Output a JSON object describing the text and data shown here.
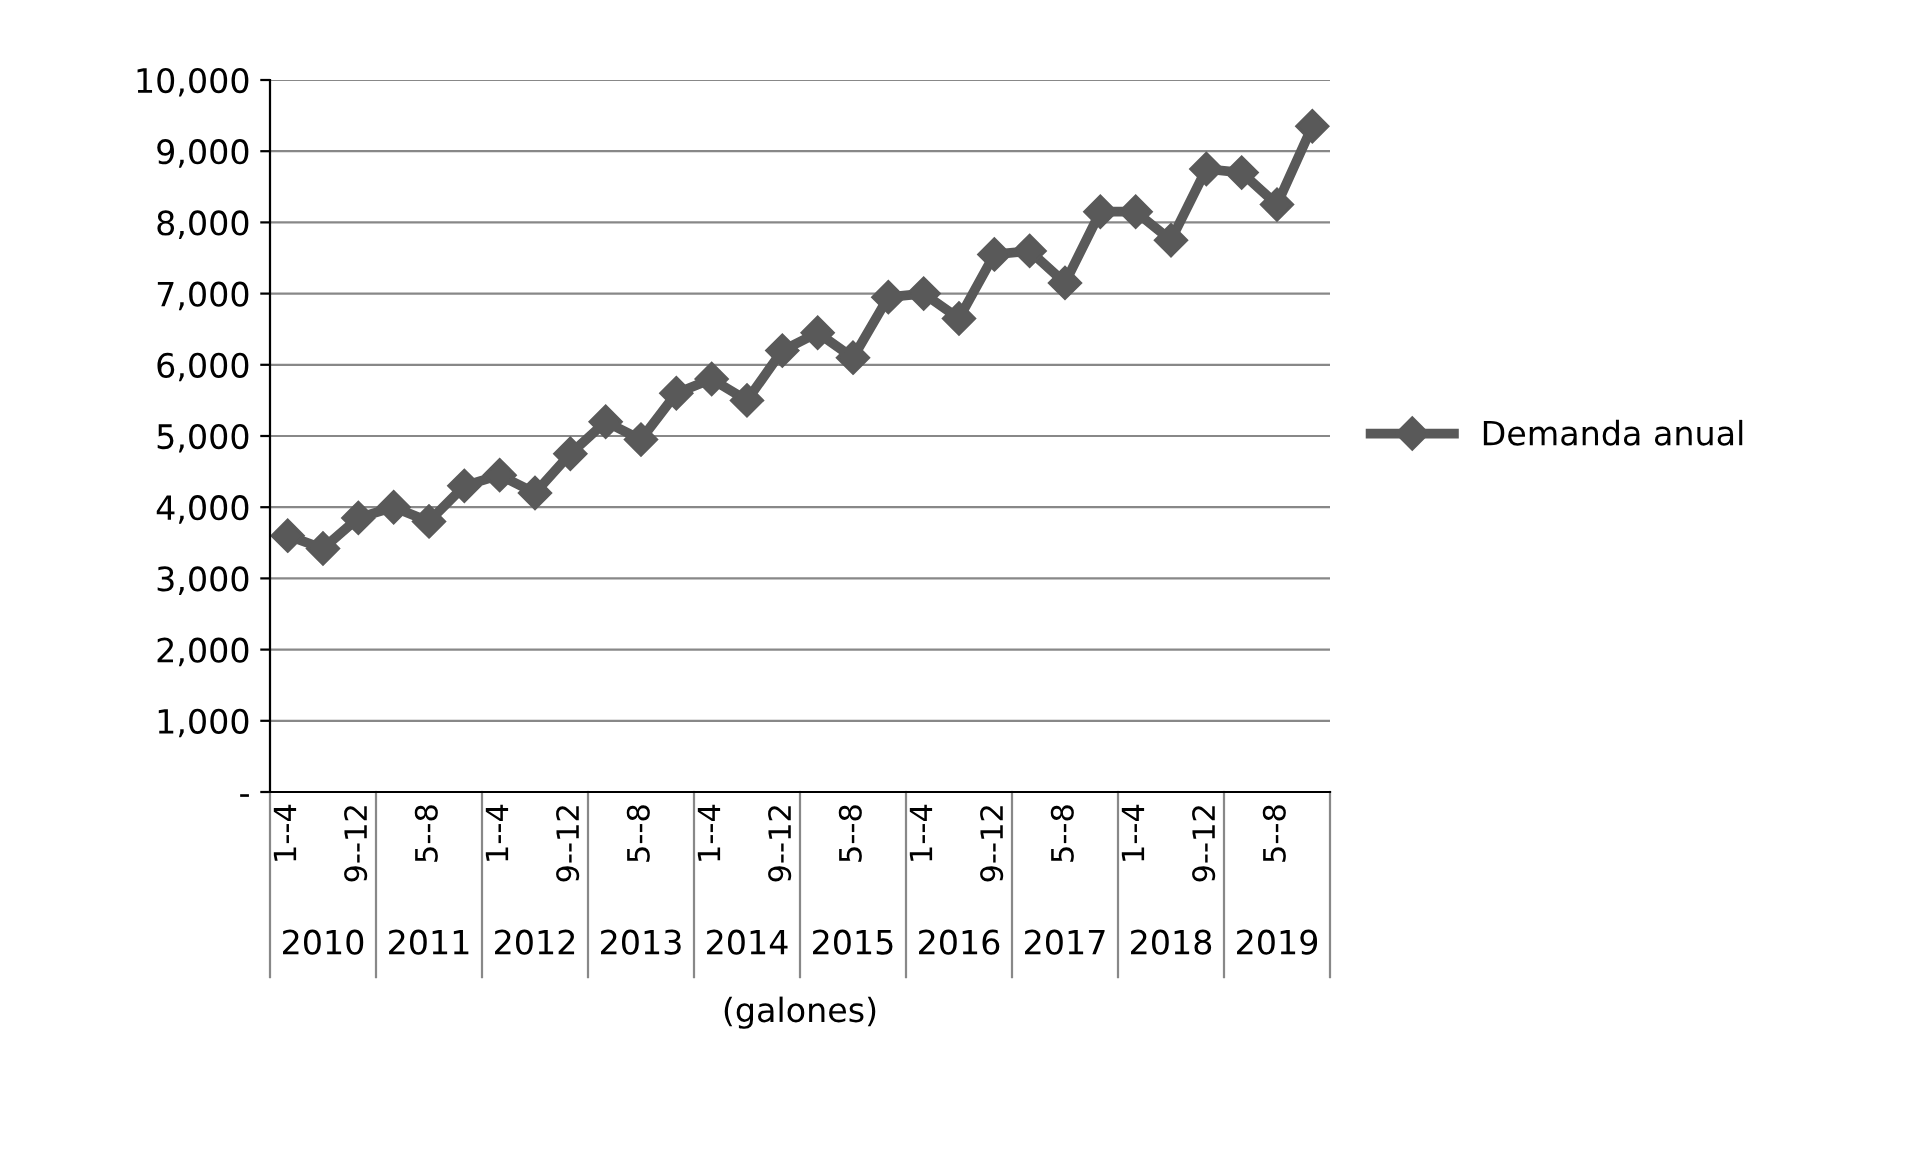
{
  "chart_data": {
    "type": "line",
    "xlabel": "(galones)",
    "categories": [
      "1--4",
      null,
      "9--12",
      null,
      "5--8",
      null,
      "1--4",
      null,
      "9--12",
      null,
      "5--8",
      null,
      "1--4",
      null,
      "9--12",
      null,
      "5--8",
      null,
      "1--4",
      null,
      "9--12",
      null,
      "5--8",
      null,
      "1--4",
      null,
      "9--12",
      null,
      "5--8",
      null
    ],
    "annotations": [
      "2010",
      "2011",
      "2012",
      "2013",
      "2014",
      "2015",
      "2016",
      "2017",
      "2018",
      "2019"
    ],
    "series": [
      {
        "name": "Demanda anual",
        "color": "#595959",
        "values": [
          3600,
          3420,
          3850,
          4000,
          3800,
          4300,
          4450,
          4200,
          4750,
          5200,
          4950,
          5600,
          5800,
          5500,
          6200,
          6450,
          6100,
          6950,
          7000,
          6650,
          7550,
          7600,
          7150,
          8150,
          8150,
          7750,
          8750,
          8700,
          8250,
          9350
        ]
      }
    ],
    "ylim": [
      0,
      10000
    ],
    "yticks": [
      {
        "value": 0,
        "label": "-"
      },
      {
        "value": 1000,
        "label": "1,000"
      },
      {
        "value": 2000,
        "label": "2,000"
      },
      {
        "value": 3000,
        "label": "3,000"
      },
      {
        "value": 4000,
        "label": "4,000"
      },
      {
        "value": 5000,
        "label": "5,000"
      },
      {
        "value": 6000,
        "label": "6,000"
      },
      {
        "value": 7000,
        "label": "7,000"
      },
      {
        "value": 8000,
        "label": "8,000"
      },
      {
        "value": 9000,
        "label": "9,000"
      },
      {
        "value": 10000,
        "label": "10,000"
      }
    ],
    "grid": "y",
    "legend": "right",
    "marker": "diamond",
    "line_style": "solid"
  }
}
